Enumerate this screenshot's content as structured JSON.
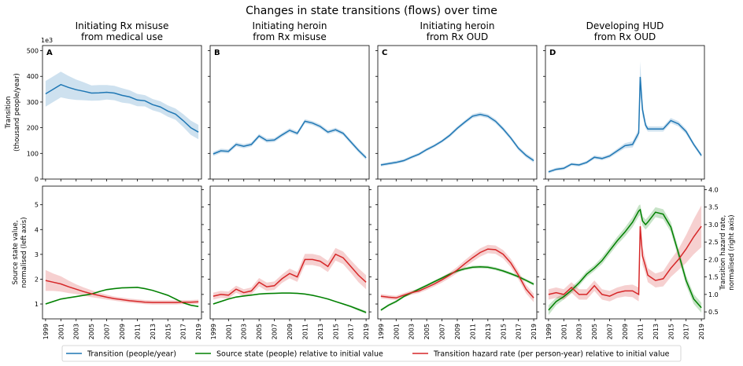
{
  "title": "Changes in state transitions (flows) over time",
  "legend": [
    {
      "label": "Transition (people/year)",
      "color": "#1f77b4"
    },
    {
      "label": "Source state (people) relative to initial value",
      "color": "#008000"
    },
    {
      "label": "Transition hazard rate (per person-year) relative to initial value",
      "color": "#d62728"
    }
  ],
  "axes": {
    "top_ylabel": [
      "Transition",
      "(thousand people/year)"
    ],
    "top_multiplier": "1e3",
    "bottom_left_ylabel": [
      "Source state value,",
      "normalised (left axis)"
    ],
    "bottom_right_ylabel": [
      "Transition hazard rate,",
      "normalised (right axis)"
    ],
    "top_yticks": [
      "0",
      "100",
      "200",
      "300",
      "400",
      "500"
    ],
    "bottom_left_yticks": [
      "1",
      "2",
      "3",
      "4",
      "5"
    ],
    "bottom_right_yticks": [
      "0.5",
      "1.0",
      "1.5",
      "2.0",
      "2.5",
      "3.0",
      "3.5",
      "4.0"
    ],
    "xticks": [
      "1999",
      "2001",
      "2003",
      "2005",
      "2007",
      "2009",
      "2011",
      "2013",
      "2015",
      "2017",
      "2019"
    ]
  },
  "chart_data": [
    {
      "type": "line",
      "panel": "A",
      "title": [
        "Initiating Rx misuse",
        "from medical use"
      ],
      "x": [
        1999,
        2000,
        2001,
        2002,
        2003,
        2004,
        2005,
        2006,
        2007,
        2008,
        2009,
        2010,
        2011,
        2012,
        2013,
        2014,
        2015,
        2016,
        2017,
        2018,
        2019
      ],
      "ylim": [
        0,
        520
      ],
      "series": [
        {
          "name": "Transition (people/year)",
          "values": [
            332,
            350,
            368,
            357,
            348,
            342,
            335,
            336,
            338,
            335,
            326,
            320,
            308,
            305,
            290,
            281,
            265,
            253,
            228,
            200,
            183
          ],
          "band": [
            50,
            50,
            50,
            45,
            40,
            35,
            30,
            30,
            28,
            28,
            28,
            26,
            24,
            22,
            22,
            22,
            22,
            22,
            25,
            28,
            28
          ]
        }
      ],
      "bottom": {
        "x": [
          1999,
          2000,
          2001,
          2002,
          2003,
          2004,
          2005,
          2006,
          2007,
          2008,
          2009,
          2010,
          2011,
          2012,
          2013,
          2014,
          2015,
          2016,
          2017,
          2018,
          2019
        ],
        "source": [
          1.0,
          1.1,
          1.2,
          1.25,
          1.3,
          1.35,
          1.4,
          1.5,
          1.58,
          1.62,
          1.65,
          1.66,
          1.67,
          1.62,
          1.55,
          1.45,
          1.35,
          1.2,
          1.05,
          0.95,
          0.9
        ],
        "source_band": [
          0.03,
          0.03,
          0.03,
          0.03,
          0.03,
          0.03,
          0.03,
          0.03,
          0.03,
          0.03,
          0.03,
          0.03,
          0.03,
          0.03,
          0.03,
          0.03,
          0.03,
          0.03,
          0.03,
          0.03,
          0.03
        ],
        "hazard": [
          1.4,
          1.35,
          1.3,
          1.22,
          1.15,
          1.08,
          1.02,
          0.97,
          0.92,
          0.88,
          0.85,
          0.82,
          0.8,
          0.78,
          0.77,
          0.77,
          0.77,
          0.77,
          0.78,
          0.78,
          0.79
        ],
        "hazard_band": [
          0.3,
          0.25,
          0.22,
          0.18,
          0.14,
          0.12,
          0.1,
          0.08,
          0.07,
          0.06,
          0.06,
          0.06,
          0.06,
          0.06,
          0.06,
          0.06,
          0.06,
          0.06,
          0.06,
          0.06,
          0.06
        ]
      }
    },
    {
      "type": "line",
      "panel": "B",
      "title": [
        "Initiating heroin",
        "from Rx misuse"
      ],
      "x": [
        1999,
        2000,
        2001,
        2002,
        2003,
        2004,
        2005,
        2006,
        2007,
        2008,
        2009,
        2010,
        2011,
        2012,
        2013,
        2014,
        2015,
        2016,
        2017,
        2018,
        2019
      ],
      "ylim": [
        0,
        520
      ],
      "series": [
        {
          "name": "Transition (people/year)",
          "values": [
            98,
            110,
            108,
            135,
            128,
            135,
            168,
            150,
            152,
            172,
            190,
            178,
            225,
            218,
            205,
            183,
            192,
            178,
            145,
            112,
            83
          ],
          "band": [
            8,
            8,
            8,
            8,
            8,
            8,
            8,
            8,
            8,
            8,
            8,
            8,
            8,
            8,
            8,
            8,
            8,
            8,
            8,
            8,
            8
          ]
        }
      ],
      "bottom": {
        "x": [
          1999,
          2000,
          2001,
          2002,
          2003,
          2004,
          2005,
          2006,
          2007,
          2008,
          2009,
          2010,
          2011,
          2012,
          2013,
          2014,
          2015,
          2016,
          2017,
          2018,
          2019
        ],
        "source": [
          1.0,
          1.1,
          1.2,
          1.28,
          1.32,
          1.36,
          1.4,
          1.42,
          1.43,
          1.44,
          1.44,
          1.43,
          1.4,
          1.35,
          1.28,
          1.2,
          1.1,
          1.0,
          0.9,
          0.78,
          0.66
        ],
        "source_band": [
          0.03,
          0.03,
          0.03,
          0.03,
          0.03,
          0.03,
          0.03,
          0.03,
          0.03,
          0.03,
          0.03,
          0.03,
          0.03,
          0.03,
          0.03,
          0.03,
          0.03,
          0.03,
          0.04,
          0.05,
          0.06
        ],
        "hazard": [
          0.95,
          1.0,
          0.98,
          1.15,
          1.05,
          1.1,
          1.35,
          1.22,
          1.25,
          1.45,
          1.6,
          1.5,
          2.0,
          2.0,
          1.95,
          1.8,
          2.15,
          2.05,
          1.8,
          1.55,
          1.35
        ],
        "hazard_band": [
          0.1,
          0.1,
          0.1,
          0.1,
          0.1,
          0.1,
          0.12,
          0.12,
          0.12,
          0.12,
          0.14,
          0.14,
          0.16,
          0.16,
          0.16,
          0.16,
          0.18,
          0.18,
          0.18,
          0.2,
          0.2
        ]
      }
    },
    {
      "type": "line",
      "panel": "C",
      "title": [
        "Initiating heroin",
        "from Rx OUD"
      ],
      "x": [
        1999,
        2000,
        2001,
        2002,
        2003,
        2004,
        2005,
        2006,
        2007,
        2008,
        2009,
        2010,
        2011,
        2012,
        2013,
        2014,
        2015,
        2016,
        2017,
        2018,
        2019
      ],
      "ylim": [
        0,
        520
      ],
      "series": [
        {
          "name": "Transition (people/year)",
          "values": [
            55,
            60,
            65,
            72,
            85,
            97,
            115,
            130,
            148,
            170,
            198,
            222,
            245,
            252,
            245,
            225,
            195,
            160,
            120,
            92,
            72
          ],
          "band": [
            6,
            6,
            6,
            6,
            6,
            6,
            6,
            6,
            6,
            7,
            7,
            7,
            8,
            8,
            8,
            8,
            8,
            8,
            8,
            8,
            8
          ]
        }
      ],
      "bottom": {
        "x": [
          1999,
          2000,
          2001,
          2002,
          2003,
          2004,
          2005,
          2006,
          2007,
          2008,
          2009,
          2010,
          2011,
          2012,
          2013,
          2014,
          2015,
          2016,
          2017,
          2018,
          2019
        ],
        "source": [
          0.75,
          0.95,
          1.1,
          1.3,
          1.45,
          1.6,
          1.75,
          1.9,
          2.05,
          2.2,
          2.33,
          2.42,
          2.48,
          2.5,
          2.48,
          2.42,
          2.33,
          2.22,
          2.1,
          1.95,
          1.8
        ],
        "source_band": [
          0.05,
          0.05,
          0.05,
          0.05,
          0.05,
          0.05,
          0.05,
          0.05,
          0.05,
          0.05,
          0.05,
          0.06,
          0.06,
          0.06,
          0.06,
          0.06,
          0.06,
          0.06,
          0.06,
          0.06,
          0.06
        ],
        "hazard": [
          0.95,
          0.92,
          0.9,
          0.98,
          1.05,
          1.1,
          1.2,
          1.3,
          1.42,
          1.55,
          1.7,
          1.88,
          2.05,
          2.2,
          2.3,
          2.28,
          2.15,
          1.9,
          1.55,
          1.15,
          0.9
        ],
        "hazard_band": [
          0.06,
          0.06,
          0.06,
          0.06,
          0.06,
          0.06,
          0.07,
          0.07,
          0.08,
          0.08,
          0.09,
          0.1,
          0.11,
          0.12,
          0.12,
          0.12,
          0.12,
          0.12,
          0.12,
          0.12,
          0.12
        ]
      }
    },
    {
      "type": "line",
      "panel": "D",
      "title": [
        "Developing HUD",
        "from Rx OUD"
      ],
      "x": [
        1999,
        2000,
        2001,
        2002,
        2003,
        2004,
        2005,
        2006,
        2007,
        2008,
        2009,
        2010,
        2010.8,
        2011,
        2011.3,
        2011.7,
        2012,
        2013,
        2014,
        2015,
        2016,
        2017,
        2018,
        2019
      ],
      "ylim": [
        0,
        520
      ],
      "series": [
        {
          "name": "Transition (people/year)",
          "values": [
            28,
            38,
            42,
            58,
            55,
            65,
            85,
            80,
            90,
            110,
            130,
            135,
            180,
            398,
            270,
            210,
            195,
            195,
            195,
            228,
            215,
            185,
            135,
            92
          ],
          "band": [
            6,
            6,
            6,
            6,
            6,
            6,
            7,
            7,
            7,
            8,
            10,
            12,
            15,
            60,
            25,
            12,
            10,
            10,
            10,
            10,
            10,
            10,
            8,
            8
          ]
        }
      ],
      "bottom": {
        "x": [
          1999,
          2000,
          2001,
          2002,
          2003,
          2004,
          2005,
          2006,
          2007,
          2008,
          2009,
          2010,
          2010.8,
          2011,
          2011.3,
          2011.7,
          2012,
          2013,
          2014,
          2015,
          2016,
          2017,
          2018,
          2019
        ],
        "source": [
          0.75,
          1.1,
          1.3,
          1.55,
          1.85,
          2.2,
          2.45,
          2.75,
          3.15,
          3.55,
          3.9,
          4.3,
          4.75,
          4.8,
          4.35,
          4.2,
          4.3,
          4.7,
          4.62,
          4.1,
          3.05,
          1.95,
          1.2,
          0.85
        ],
        "source_band": [
          0.2,
          0.15,
          0.12,
          0.12,
          0.12,
          0.12,
          0.12,
          0.14,
          0.15,
          0.16,
          0.18,
          0.2,
          0.22,
          0.22,
          0.2,
          0.2,
          0.2,
          0.2,
          0.2,
          0.2,
          0.2,
          0.2,
          0.2,
          0.2
        ],
        "hazard": [
          1.0,
          1.05,
          1.0,
          1.2,
          1.0,
          1.0,
          1.25,
          1.0,
          0.95,
          1.05,
          1.1,
          1.1,
          1.0,
          2.95,
          2.1,
          1.8,
          1.55,
          1.4,
          1.45,
          1.75,
          2.0,
          2.3,
          2.65,
          2.95
        ],
        "hazard_band": [
          0.15,
          0.15,
          0.15,
          0.15,
          0.15,
          0.15,
          0.15,
          0.15,
          0.15,
          0.15,
          0.16,
          0.18,
          0.2,
          0.3,
          0.25,
          0.2,
          0.2,
          0.2,
          0.22,
          0.25,
          0.3,
          0.4,
          0.5,
          0.6
        ]
      }
    }
  ]
}
